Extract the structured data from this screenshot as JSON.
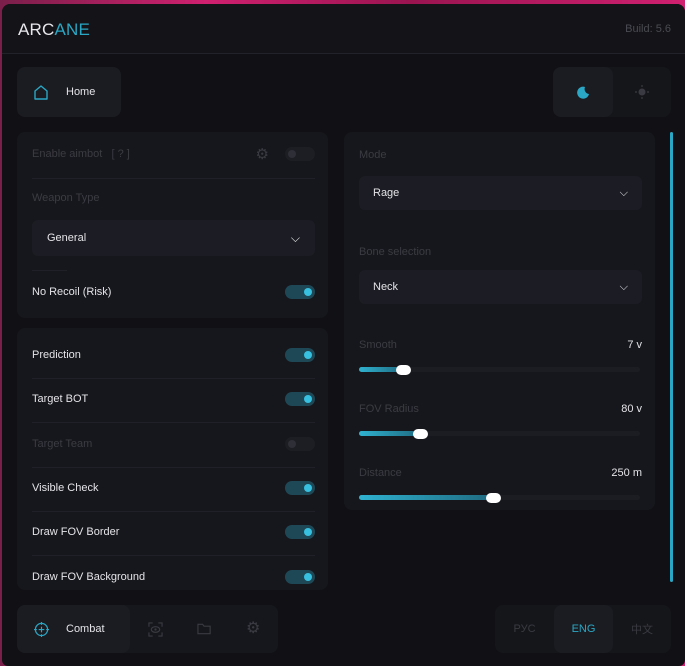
{
  "header": {
    "logo_a": "ARC",
    "logo_b": "ANE",
    "build": "Build: 5.6"
  },
  "nav": {
    "home": "Home"
  },
  "theme": {
    "active": "dark",
    "icons": [
      "moon-icon",
      "sun-icon"
    ]
  },
  "left_top": {
    "enable_aimbot": {
      "label": "Enable aimbot",
      "help": "[ ? ]",
      "enabled": false
    },
    "weapon_type": {
      "label": "Weapon Type",
      "value": "General"
    },
    "no_recoil": {
      "label": "No Recoil (Risk)",
      "enabled": true
    }
  },
  "left_list": [
    {
      "label": "Prediction",
      "enabled": true
    },
    {
      "label": "Target BOT",
      "enabled": true
    },
    {
      "label": "Target Team",
      "enabled": false
    },
    {
      "label": "Visible Check",
      "enabled": true
    },
    {
      "label": "Draw FOV Border",
      "enabled": true
    },
    {
      "label": "Draw FOV Background",
      "enabled": true
    }
  ],
  "right": {
    "mode": {
      "label": "Mode",
      "value": "Rage"
    },
    "bone": {
      "label": "Bone selection",
      "value": "Neck"
    },
    "sliders": [
      {
        "label": "Smooth",
        "value": "7 v",
        "fraction": 0.16
      },
      {
        "label": "FOV Radius",
        "value": "80 v",
        "fraction": 0.22
      },
      {
        "label": "Distance",
        "value": "250 m",
        "fraction": 0.48
      }
    ]
  },
  "bottom": {
    "active_tab": "Combat",
    "tabs": [
      "crosshair-icon",
      "eye-scan-icon",
      "folder-icon",
      "gear-icon"
    ]
  },
  "languages": {
    "items": [
      "РУС",
      "ENG",
      "中文"
    ],
    "active": "ENG"
  },
  "colors": {
    "accent": "#2aa7c4",
    "background": "#111115",
    "panel": "#16171c"
  }
}
